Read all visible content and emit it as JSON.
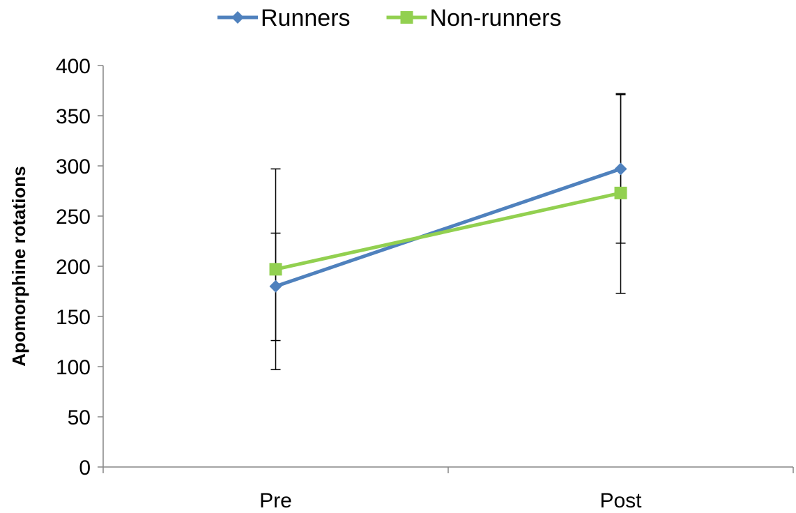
{
  "chart_data": {
    "type": "line",
    "title": "",
    "xlabel": "",
    "ylabel": "Apomorphine rotations",
    "categories": [
      "Pre",
      "Post"
    ],
    "ylim": [
      0,
      400
    ],
    "yticks": [
      0,
      50,
      100,
      150,
      200,
      250,
      300,
      350,
      400
    ],
    "grid": false,
    "legend_position": "top",
    "series": [
      {
        "name": "Runners",
        "color": "#4f81bd",
        "marker": "diamond",
        "values": [
          180,
          297
        ],
        "error_low": [
          126,
          223
        ],
        "error_high": [
          233,
          372
        ]
      },
      {
        "name": "Non-runners",
        "color": "#92d050",
        "marker": "square",
        "values": [
          197,
          273
        ],
        "error_low": [
          97,
          173
        ],
        "error_high": [
          297,
          371
        ]
      }
    ]
  }
}
